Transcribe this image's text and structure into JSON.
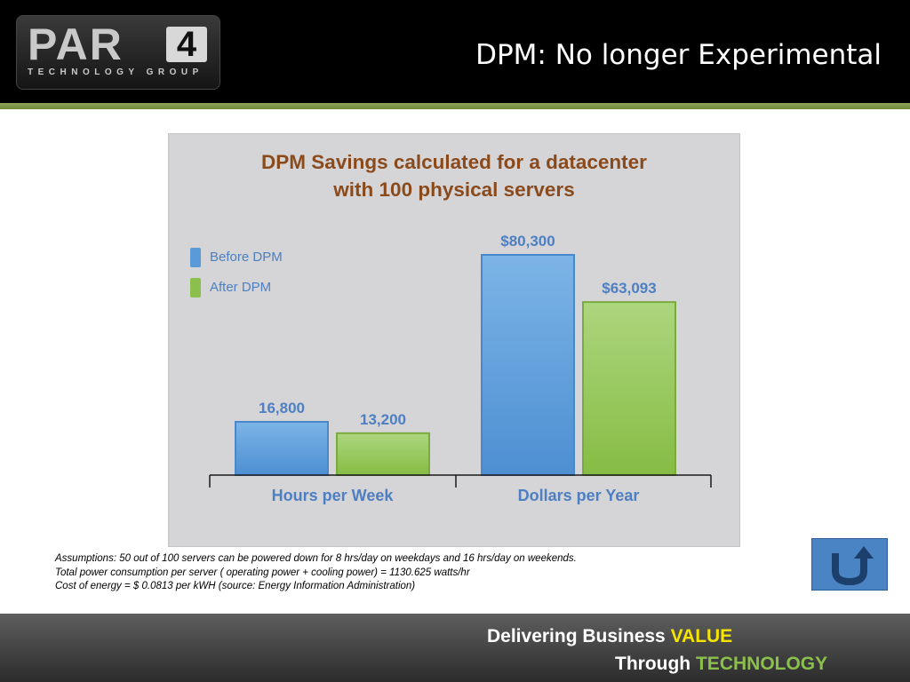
{
  "header": {
    "logo_main": "PAR",
    "logo_number": "4",
    "logo_sub": "TECHNOLOGY GROUP",
    "title": "DPM:  No longer Experimental"
  },
  "chart_data": {
    "type": "bar",
    "title_line1": "DPM Savings calculated for a datacenter",
    "title_line2": "with 100 physical servers",
    "categories": [
      "Hours per Week",
      "Dollars per Year"
    ],
    "series": [
      {
        "name": "Before DPM",
        "values": [
          16800,
          80300
        ],
        "labels": [
          "16,800",
          "$80,300"
        ],
        "color": "#5b9ad8"
      },
      {
        "name": "After DPM",
        "values": [
          13200,
          63093
        ],
        "labels": [
          "13,200",
          "$63,093"
        ],
        "color": "#8cc04c"
      }
    ],
    "label_color": "#4d7fc2",
    "grid": false,
    "legend_position": "top-left"
  },
  "assumptions": [
    "Assumptions:  50 out of 100 servers can be powered down for 8 hrs/day on weekdays and 16 hrs/day on weekends.",
    "Total power consumption per server ( operating power + cooling power) = 1130.625 watts/hr",
    "Cost of energy = $ 0.0813 per kWH (source: Energy Information Administration)"
  ],
  "back_button": {
    "icon": "u-turn-arrow-icon"
  },
  "footer": {
    "line1_prefix": "Delivering Business ",
    "line1_highlight": "VALUE",
    "line2_prefix": "Through ",
    "line2_highlight": "TECHNOLOGY",
    "highlight1_color": "#f5e400",
    "highlight2_color": "#8cc04c"
  }
}
